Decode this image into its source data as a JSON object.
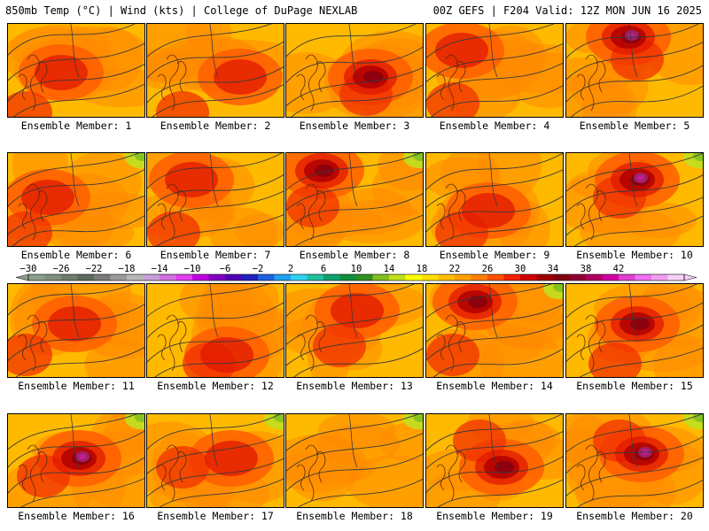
{
  "header": {
    "left": "850mb Temp (°C) | Wind (kts) | College of DuPage NEXLAB",
    "right": "00Z GEFS | F204 Valid: 12Z MON JUN 16 2025"
  },
  "panels": [
    {
      "label": "Ensemble Member: 1"
    },
    {
      "label": "Ensemble Member: 2"
    },
    {
      "label": "Ensemble Member: 3"
    },
    {
      "label": "Ensemble Member: 4"
    },
    {
      "label": "Ensemble Member: 5"
    },
    {
      "label": "Ensemble Member: 6"
    },
    {
      "label": "Ensemble Member: 7"
    },
    {
      "label": "Ensemble Member: 8"
    },
    {
      "label": "Ensemble Member: 9"
    },
    {
      "label": "Ensemble Member: 10"
    },
    {
      "label": "Ensemble Member: 11"
    },
    {
      "label": "Ensemble Member: 12"
    },
    {
      "label": "Ensemble Member: 13"
    },
    {
      "label": "Ensemble Member: 14"
    },
    {
      "label": "Ensemble Member: 15"
    },
    {
      "label": "Ensemble Member: 16"
    },
    {
      "label": "Ensemble Member: 17"
    },
    {
      "label": "Ensemble Member: 18"
    },
    {
      "label": "Ensemble Member: 19"
    },
    {
      "label": "Ensemble Member: 20"
    }
  ],
  "colorbar": {
    "labels": [
      "−30",
      "−26",
      "−22",
      "−18",
      "−14",
      "−10",
      "−6",
      "−2",
      "2",
      "6",
      "10",
      "14",
      "18",
      "22",
      "26",
      "30",
      "34",
      "38",
      "42"
    ],
    "colors": [
      "#8c9e8c",
      "#7f8f7f",
      "#6e7d6e",
      "#5c6a5c",
      "#7a7a7a",
      "#9a9a9a",
      "#b8b8b8",
      "#c8a0d8",
      "#d070e0",
      "#e040f0",
      "#c000e0",
      "#8000c0",
      "#5000b0",
      "#2020c0",
      "#2060e0",
      "#20a0f0",
      "#30d0f0",
      "#20c0a0",
      "#10a070",
      "#109040",
      "#309020",
      "#80c020",
      "#c0e020",
      "#ffff00",
      "#ffe000",
      "#ffc000",
      "#ffa000",
      "#ff8000",
      "#ff5000",
      "#f02000",
      "#d00000",
      "#a00000",
      "#800010",
      "#900030",
      "#b00060",
      "#d000a0",
      "#e040d0",
      "#f070f0",
      "#f0a0f0",
      "#f8d0f8"
    ]
  }
}
